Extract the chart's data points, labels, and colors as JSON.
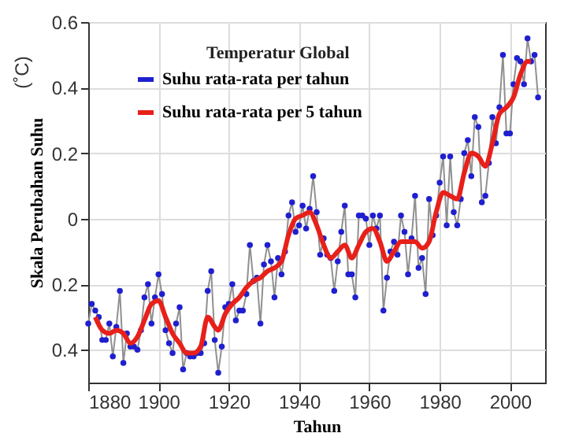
{
  "chart_data": {
    "type": "line",
    "title": "Temperatur Global",
    "xlabel": "Tahun",
    "ylabel": "Skala Perubahan Suhu",
    "annotations": [
      "(˚C)"
    ],
    "xlim": [
      1880,
      2010
    ],
    "xticks": [
      1880,
      1900,
      1920,
      1940,
      1960,
      1980,
      2000
    ],
    "ylim": [
      -0.5,
      0.6
    ],
    "yticks": [
      {
        "value": -0.4,
        "label": "0.4"
      },
      {
        "value": -0.2,
        "label": "0.2"
      },
      0,
      0.2,
      0.4,
      0.6
    ],
    "grid": true,
    "legend": "top left",
    "series": [
      {
        "name": "Suhu rata-rata per tahun",
        "color": "#1f1fd0",
        "marker": "circle",
        "x": [
          1880,
          1881,
          1882,
          1883,
          1884,
          1885,
          1886,
          1887,
          1888,
          1889,
          1890,
          1891,
          1892,
          1893,
          1894,
          1895,
          1896,
          1897,
          1898,
          1899,
          1900,
          1901,
          1902,
          1903,
          1904,
          1905,
          1906,
          1907,
          1908,
          1909,
          1910,
          1911,
          1912,
          1913,
          1914,
          1915,
          1916,
          1917,
          1918,
          1919,
          1920,
          1921,
          1922,
          1923,
          1924,
          1925,
          1926,
          1927,
          1928,
          1929,
          1930,
          1931,
          1932,
          1933,
          1934,
          1935,
          1936,
          1937,
          1938,
          1939,
          1940,
          1941,
          1942,
          1943,
          1944,
          1945,
          1946,
          1947,
          1948,
          1949,
          1950,
          1951,
          1952,
          1953,
          1954,
          1955,
          1956,
          1957,
          1958,
          1959,
          1960,
          1961,
          1962,
          1963,
          1964,
          1965,
          1966,
          1967,
          1968,
          1969,
          1970,
          1971,
          1972,
          1973,
          1974,
          1975,
          1976,
          1977,
          1978,
          1979,
          1980,
          1981,
          1982,
          1983,
          1984,
          1985,
          1986,
          1987,
          1988,
          1989,
          1990,
          1991,
          1992,
          1993,
          1994,
          1995,
          1996,
          1997,
          1998,
          1999,
          2000,
          2001,
          2002,
          2003,
          2004,
          2005,
          2006,
          2007,
          2008
        ],
        "values": [
          -0.32,
          -0.26,
          -0.28,
          -0.3,
          -0.37,
          -0.37,
          -0.32,
          -0.42,
          -0.33,
          -0.22,
          -0.44,
          -0.35,
          -0.39,
          -0.39,
          -0.4,
          -0.34,
          -0.24,
          -0.2,
          -0.32,
          -0.24,
          -0.17,
          -0.23,
          -0.34,
          -0.38,
          -0.41,
          -0.32,
          -0.27,
          -0.46,
          -0.41,
          -0.42,
          -0.42,
          -0.41,
          -0.41,
          -0.38,
          -0.22,
          -0.16,
          -0.37,
          -0.47,
          -0.39,
          -0.27,
          -0.26,
          -0.2,
          -0.31,
          -0.28,
          -0.28,
          -0.23,
          -0.08,
          -0.19,
          -0.18,
          -0.32,
          -0.14,
          -0.08,
          -0.13,
          -0.24,
          -0.12,
          -0.17,
          -0.1,
          0.01,
          0.05,
          -0.04,
          -0.02,
          0.04,
          -0.03,
          0.03,
          0.13,
          0.02,
          -0.11,
          -0.06,
          -0.11,
          -0.12,
          -0.22,
          -0.13,
          -0.04,
          0.04,
          -0.17,
          -0.17,
          -0.24,
          0.01,
          0.01,
          0.0,
          -0.08,
          0.01,
          -0.03,
          0.01,
          -0.28,
          -0.18,
          -0.1,
          -0.07,
          -0.11,
          0.01,
          -0.04,
          -0.17,
          -0.06,
          0.07,
          -0.15,
          -0.12,
          -0.23,
          0.06,
          -0.05,
          0.01,
          0.11,
          0.19,
          -0.02,
          0.19,
          0.02,
          -0.02,
          0.06,
          0.2,
          0.24,
          0.13,
          0.31,
          0.28,
          0.05,
          0.07,
          0.17,
          0.31,
          0.23,
          0.34,
          0.5,
          0.26,
          0.26,
          0.41,
          0.49,
          0.48,
          0.41,
          0.55,
          0.48,
          0.5,
          0.37
        ]
      },
      {
        "name": "Suhu rata-rata per  5 tahun",
        "color": "#e8201a",
        "marker": "none",
        "x": [
          1882,
          1884,
          1886,
          1888,
          1890,
          1892,
          1894,
          1896,
          1898,
          1900,
          1902,
          1904,
          1906,
          1908,
          1910,
          1912,
          1914,
          1916,
          1917,
          1919,
          1921,
          1923,
          1925,
          1927,
          1929,
          1931,
          1933,
          1935,
          1937,
          1939,
          1941,
          1943,
          1945,
          1947,
          1949,
          1951,
          1953,
          1955,
          1957,
          1959,
          1961,
          1963,
          1965,
          1967,
          1969,
          1971,
          1973,
          1975,
          1977,
          1979,
          1981,
          1983,
          1985,
          1987,
          1989,
          1991,
          1993,
          1995,
          1997,
          1999,
          2001,
          2003,
          2005,
          2006
        ],
        "values": [
          -0.3,
          -0.34,
          -0.35,
          -0.34,
          -0.35,
          -0.38,
          -0.36,
          -0.31,
          -0.26,
          -0.25,
          -0.3,
          -0.35,
          -0.38,
          -0.41,
          -0.41,
          -0.39,
          -0.3,
          -0.33,
          -0.34,
          -0.29,
          -0.26,
          -0.24,
          -0.21,
          -0.19,
          -0.18,
          -0.16,
          -0.15,
          -0.13,
          -0.05,
          0.0,
          0.01,
          0.02,
          -0.02,
          -0.08,
          -0.12,
          -0.1,
          -0.08,
          -0.12,
          -0.08,
          -0.04,
          -0.03,
          -0.07,
          -0.13,
          -0.1,
          -0.07,
          -0.07,
          -0.07,
          -0.09,
          -0.07,
          0.02,
          0.08,
          0.07,
          0.06,
          0.14,
          0.2,
          0.19,
          0.16,
          0.23,
          0.32,
          0.34,
          0.37,
          0.44,
          0.48,
          0.48
        ]
      }
    ]
  }
}
